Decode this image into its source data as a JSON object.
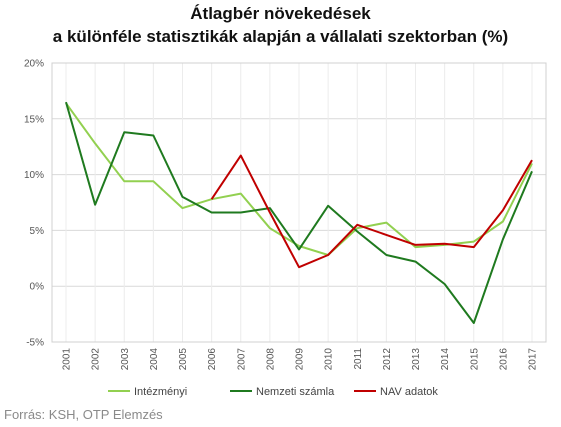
{
  "chart_data": {
    "type": "line",
    "title": "Átlagbér növekedések",
    "subtitle": "a különféle statisztikák alapján a vállalati szektorban (%)",
    "x": [
      "2001",
      "2002",
      "2003",
      "2004",
      "2005",
      "2006",
      "2007",
      "2008",
      "2009",
      "2010",
      "2011",
      "2012",
      "2013",
      "2014",
      "2015",
      "2016",
      "2017"
    ],
    "ylim": [
      -5,
      20
    ],
    "yticks": [
      20,
      15,
      10,
      5,
      0,
      -5
    ],
    "ytick_labels": [
      "20%",
      "15%",
      "10%",
      "5%",
      "0%",
      "-5%"
    ],
    "grid": true,
    "legend_position": "bottom",
    "series": [
      {
        "name": "Intézményi",
        "color": "#92d050",
        "values": [
          16.4,
          12.8,
          9.4,
          9.4,
          7.0,
          7.8,
          8.3,
          5.2,
          3.6,
          2.8,
          5.2,
          5.7,
          3.5,
          3.7,
          4.0,
          5.8,
          11.0
        ]
      },
      {
        "name": "Nemzeti számla",
        "color": "#1f7a1f",
        "values": [
          16.5,
          7.3,
          13.8,
          13.5,
          8.0,
          6.6,
          6.6,
          7.0,
          3.3,
          7.2,
          4.9,
          2.8,
          2.2,
          0.2,
          -3.3,
          4.2,
          10.3
        ]
      },
      {
        "name": "NAV adatok",
        "color": "#c00000",
        "values": [
          null,
          null,
          null,
          null,
          null,
          7.8,
          11.7,
          6.6,
          1.7,
          2.8,
          5.5,
          4.6,
          3.7,
          3.8,
          3.5,
          6.8,
          11.3
        ]
      }
    ]
  },
  "source": "Forrás: KSH, OTP Elemzés"
}
